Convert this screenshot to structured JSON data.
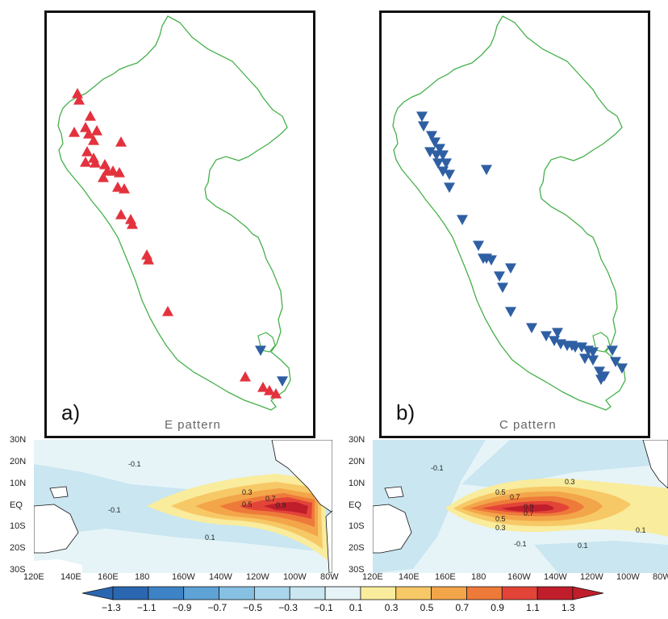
{
  "panel_a": {
    "letter": "a)",
    "caption": "E pattern"
  },
  "panel_b": {
    "letter": "b)",
    "caption": "C pattern"
  },
  "maps": {
    "lat_ticks": [
      "30N",
      "20N",
      "10N",
      "EQ",
      "10S",
      "20S",
      "30S"
    ],
    "left_lon_ticks": [
      "120E",
      "140E",
      "160E",
      "180",
      "160W",
      "140W",
      "120W",
      "100W",
      "80W"
    ],
    "right_lon_ticks": [
      "120E",
      "140E",
      "160E",
      "180",
      "160W",
      "140W",
      "120W",
      "100W",
      "80W"
    ],
    "left_contour_labels": [
      "-0.1",
      "0.3",
      "0.5",
      "0.7",
      "0.9",
      "-0.1",
      "0.1"
    ],
    "right_contour_labels": [
      "-0.1",
      "0.3",
      "0.5",
      "0.7",
      "0.9",
      "0.7",
      "0.5",
      "0.3",
      "-0.1",
      "0.1",
      "0.1"
    ]
  },
  "colorbar": {
    "labels": [
      "−1.3",
      "−1.1",
      "−0.9",
      "−0.7",
      "−0.5",
      "−0.3",
      "−0.1",
      "0.1",
      "0.3",
      "0.5",
      "0.7",
      "0.9",
      "1.1",
      "1.3"
    ],
    "colors": [
      "#2a67b0",
      "#3d83c6",
      "#5ea2d6",
      "#86c0e3",
      "#a9d6ec",
      "#c9e6f1",
      "#e6f4f8",
      "#f9ec9c",
      "#f7c866",
      "#f3a54a",
      "#ee7a3a",
      "#e34438",
      "#c01e2b"
    ]
  },
  "colors": {
    "coast": "#46b04a",
    "positive_marker": "#e3323d",
    "negative_marker": "#2f5fa3"
  }
}
